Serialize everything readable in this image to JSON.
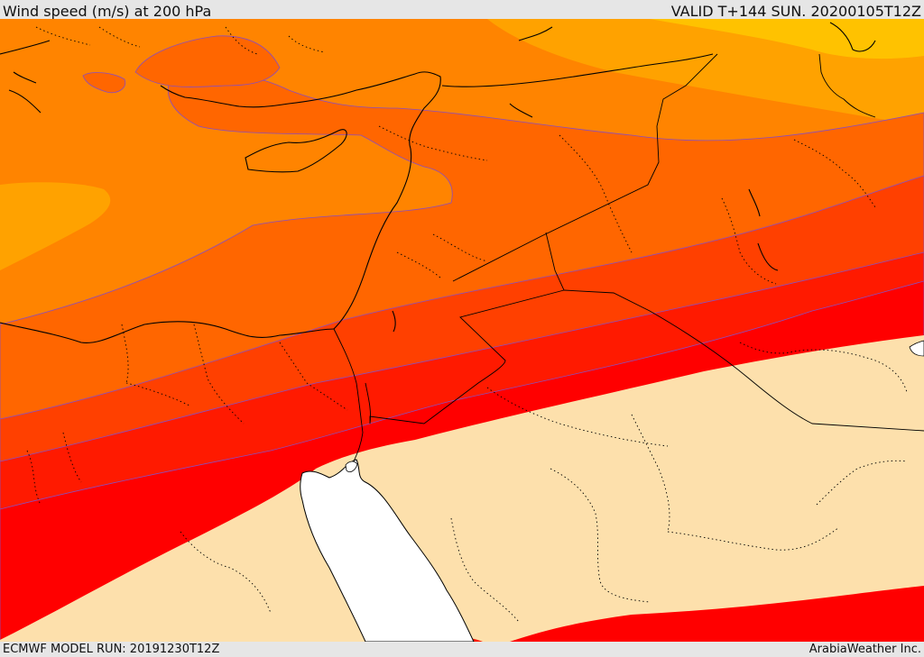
{
  "header": {
    "title": "Wind speed (m/s) at 200 hPa",
    "valid": "VALID T+144 SUN. 20200105T12Z"
  },
  "footer": {
    "model_run": "ECMWF MODEL RUN: 20191230T12Z",
    "credit": "ArabiaWeather Inc."
  },
  "map": {
    "field": "wind speed 200 hPa",
    "band_colors": [
      "#ffc200",
      "#ffa200",
      "#ff8400",
      "#ff6600",
      "#ff4000",
      "#ff1a00",
      "#ff0000",
      "#fde0ac",
      "#ffffff"
    ]
  }
}
